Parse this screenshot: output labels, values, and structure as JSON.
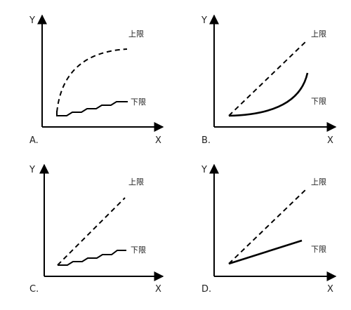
{
  "axis_labels": {
    "x": "X",
    "y": "Y"
  },
  "bounds": {
    "upper": "上限",
    "lower": "下限"
  },
  "panels": [
    {
      "id": "A",
      "label": "A."
    },
    {
      "id": "B",
      "label": "B."
    },
    {
      "id": "C",
      "label": "C."
    },
    {
      "id": "D",
      "label": "D."
    }
  ]
}
